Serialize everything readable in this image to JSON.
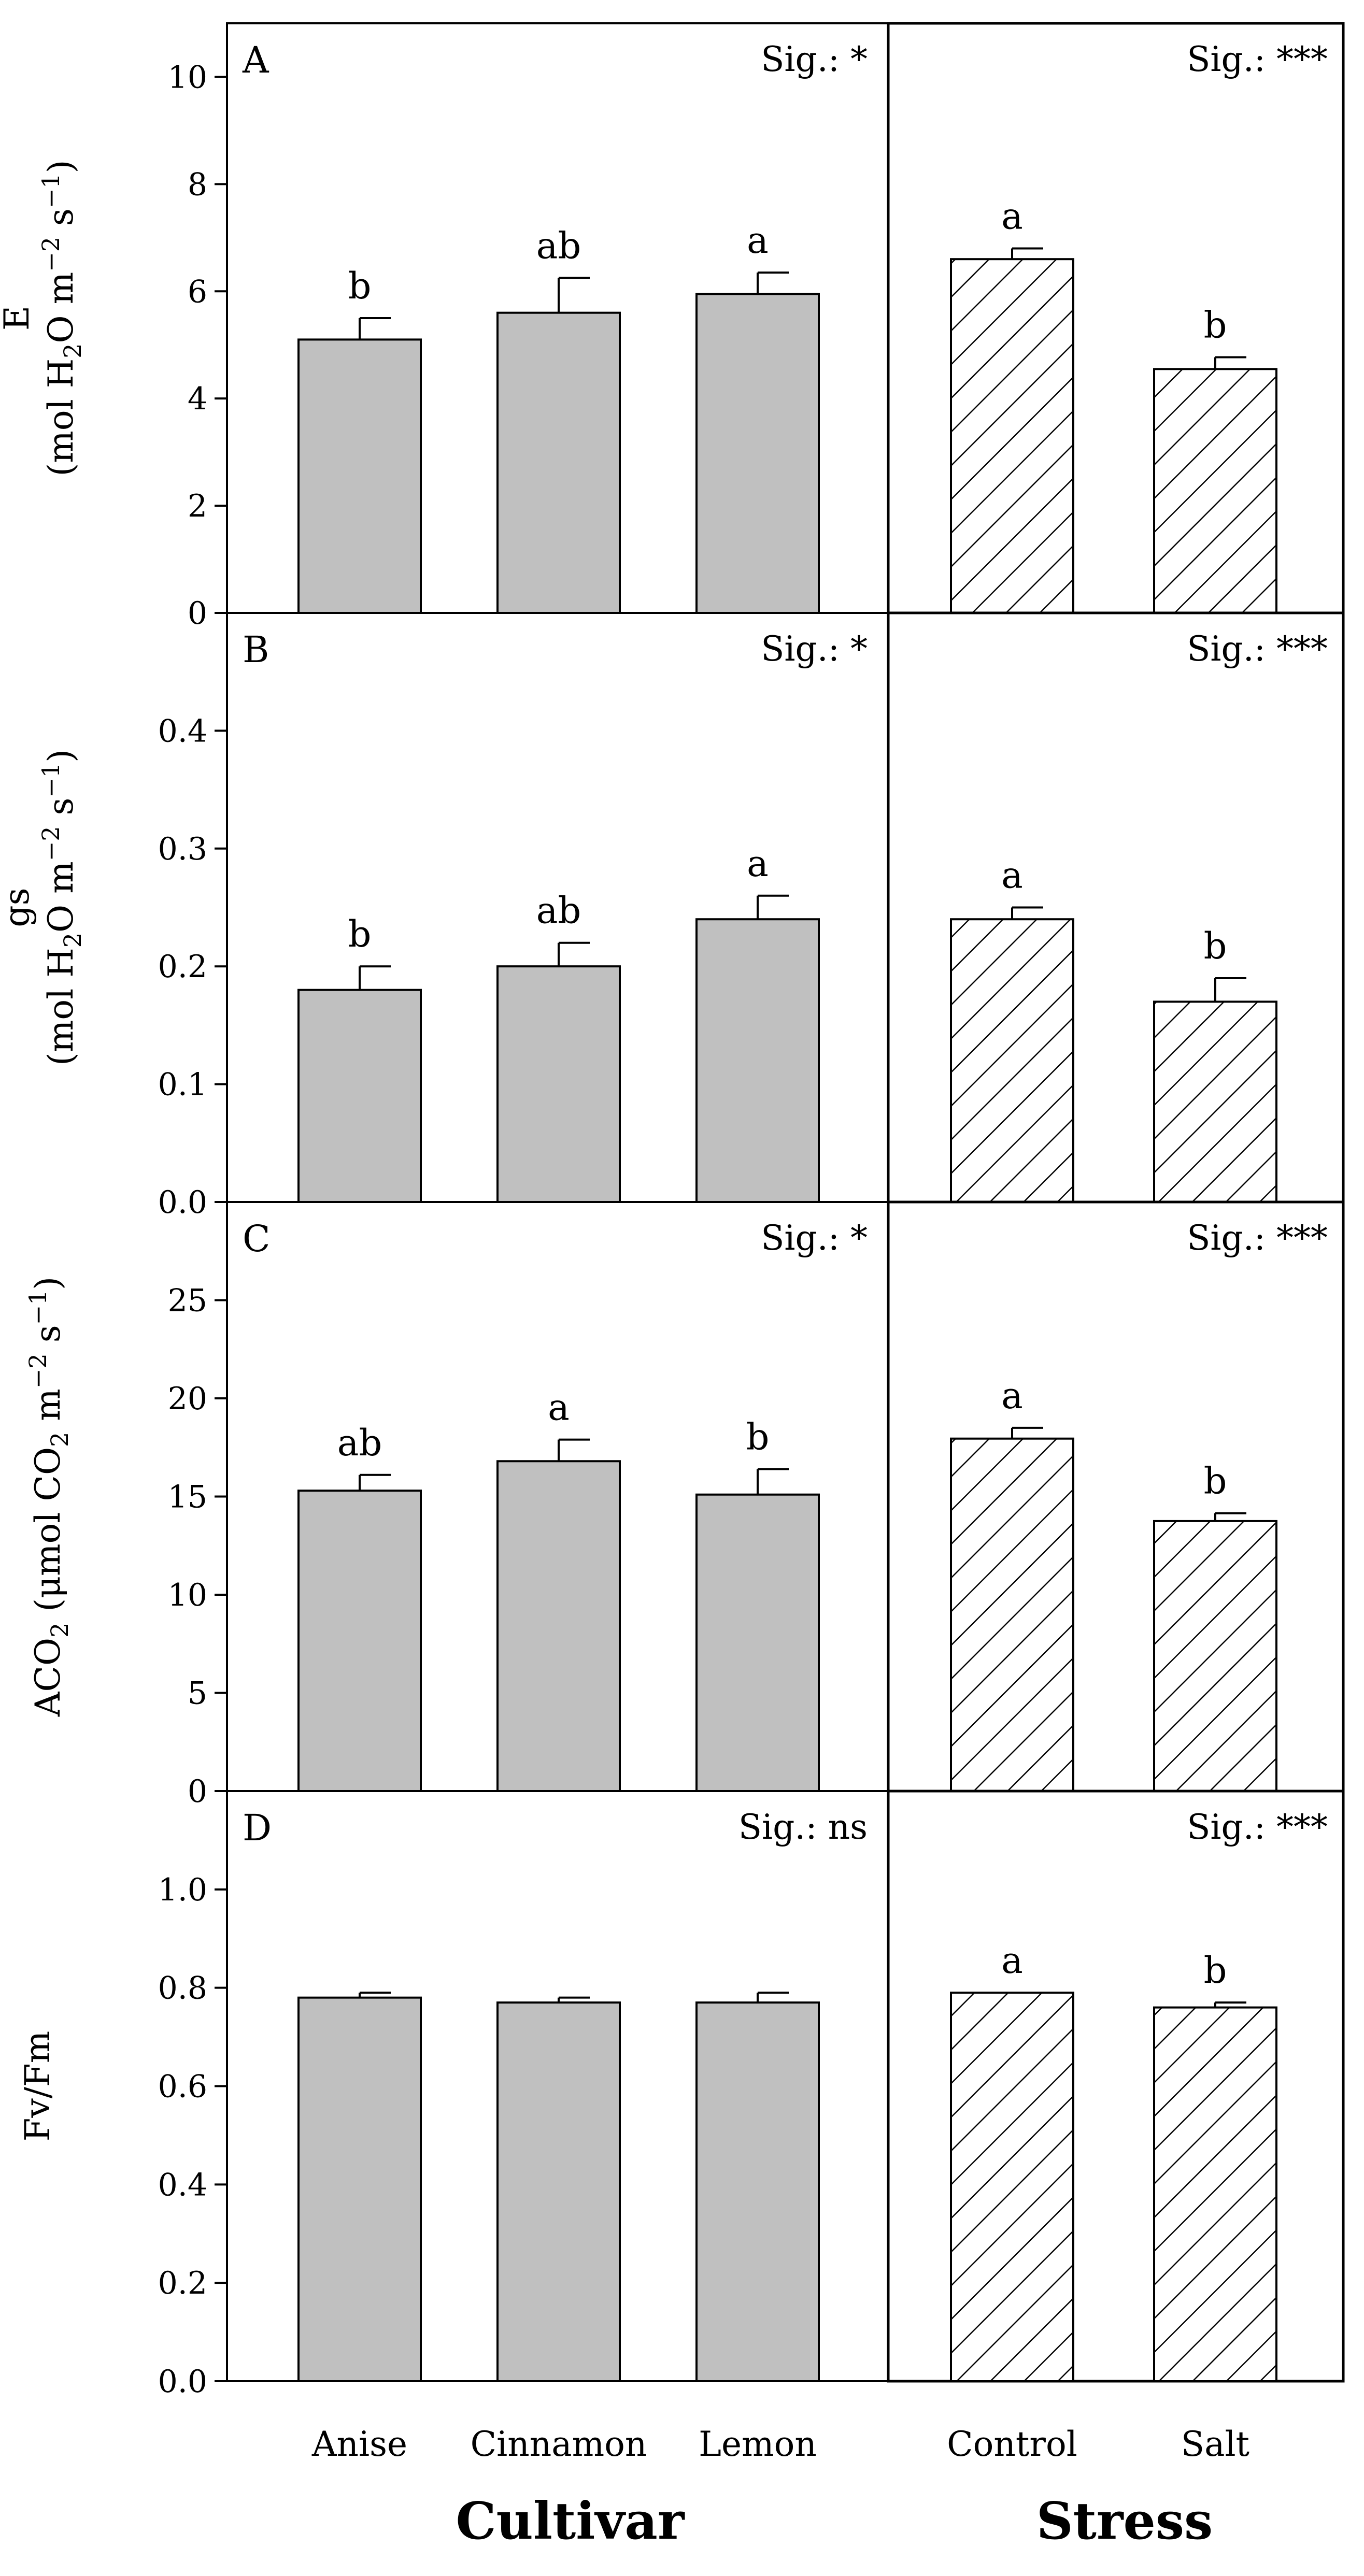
{
  "figure": {
    "group_titles": {
      "cultivar": "Cultivar",
      "stress": "Stress"
    }
  },
  "chart_data": [
    {
      "type": "bar",
      "panel": "A",
      "ylabel": {
        "line1": "E",
        "line2_parts": [
          "(mol H",
          "2",
          "O m",
          "−2",
          " s",
          "−1",
          ")"
        ]
      },
      "ylim": [
        0,
        11
      ],
      "yticks": [
        0,
        2,
        4,
        6,
        8,
        10
      ],
      "tick_labels": [
        "0",
        "2",
        "4",
        "6",
        "8",
        "10"
      ],
      "cultivar": {
        "sig": "Sig.: *",
        "categories": [
          "Anise",
          "Cinnamon",
          "Lemon"
        ],
        "values": [
          5.1,
          5.6,
          5.95
        ],
        "errors": [
          0.4,
          0.65,
          0.4
        ],
        "letters": [
          "b",
          "ab",
          "a"
        ]
      },
      "stress": {
        "sig": "Sig.: ***",
        "categories": [
          "Control",
          "Salt"
        ],
        "values": [
          6.6,
          4.55
        ],
        "errors": [
          0.2,
          0.22
        ],
        "letters": [
          "a",
          "b"
        ]
      }
    },
    {
      "type": "bar",
      "panel": "B",
      "ylabel": {
        "line1": "gs",
        "line2_parts": [
          "(mol H",
          "2",
          "O m",
          "−2",
          " s",
          "−1",
          ")"
        ]
      },
      "ylim": [
        0,
        0.5
      ],
      "yticks": [
        0,
        0.1,
        0.2,
        0.3,
        0.4
      ],
      "tick_labels": [
        "0.0",
        "0.1",
        "0.2",
        "0.3",
        "0.4"
      ],
      "cultivar": {
        "sig": "Sig.: *",
        "categories": [
          "Anise",
          "Cinnamon",
          "Lemon"
        ],
        "values": [
          0.18,
          0.2,
          0.24
        ],
        "errors": [
          0.02,
          0.02,
          0.02
        ],
        "letters": [
          "b",
          "ab",
          "a"
        ]
      },
      "stress": {
        "sig": "Sig.: ***",
        "categories": [
          "Control",
          "Salt"
        ],
        "values": [
          0.24,
          0.17
        ],
        "errors": [
          0.01,
          0.02
        ],
        "letters": [
          "a",
          "b"
        ]
      }
    },
    {
      "type": "bar",
      "panel": "C",
      "ylabel": {
        "line1": "",
        "line2_parts": [
          "ACO",
          "2",
          " (μmol CO",
          "2",
          " m",
          "−2",
          " s",
          "−1",
          ")"
        ]
      },
      "ylim": [
        0,
        30
      ],
      "yticks": [
        0,
        5,
        10,
        15,
        20,
        25
      ],
      "tick_labels": [
        "0",
        "5",
        "10",
        "15",
        "20",
        "25"
      ],
      "cultivar": {
        "sig": "Sig.: *",
        "categories": [
          "Anise",
          "Cinnamon",
          "Lemon"
        ],
        "values": [
          15.3,
          16.8,
          15.1
        ],
        "errors": [
          0.8,
          1.1,
          1.3
        ],
        "letters": [
          "ab",
          "a",
          "b"
        ]
      },
      "stress": {
        "sig": "Sig.: ***",
        "categories": [
          "Control",
          "Salt"
        ],
        "values": [
          17.95,
          13.75
        ],
        "errors": [
          0.55,
          0.4
        ],
        "letters": [
          "a",
          "b"
        ]
      }
    },
    {
      "type": "bar",
      "panel": "D",
      "ylabel": {
        "line1": "Fv/Fm",
        "line2_parts": []
      },
      "ylim": [
        0,
        1.2
      ],
      "yticks": [
        0,
        0.2,
        0.4,
        0.6,
        0.8,
        1.0
      ],
      "tick_labels": [
        "0.0",
        "0.2",
        "0.4",
        "0.6",
        "0.8",
        "1.0"
      ],
      "cultivar": {
        "sig": "Sig.: ns",
        "categories": [
          "Anise",
          "Cinnamon",
          "Lemon"
        ],
        "values": [
          0.78,
          0.77,
          0.77
        ],
        "errors": [
          0.01,
          0.01,
          0.02
        ],
        "letters": [
          "",
          "",
          ""
        ]
      },
      "stress": {
        "sig": "Sig.: ***",
        "categories": [
          "Control",
          "Salt"
        ],
        "values": [
          0.79,
          0.76
        ],
        "errors": [
          0.0,
          0.01
        ],
        "letters": [
          "a",
          "b"
        ]
      }
    }
  ]
}
